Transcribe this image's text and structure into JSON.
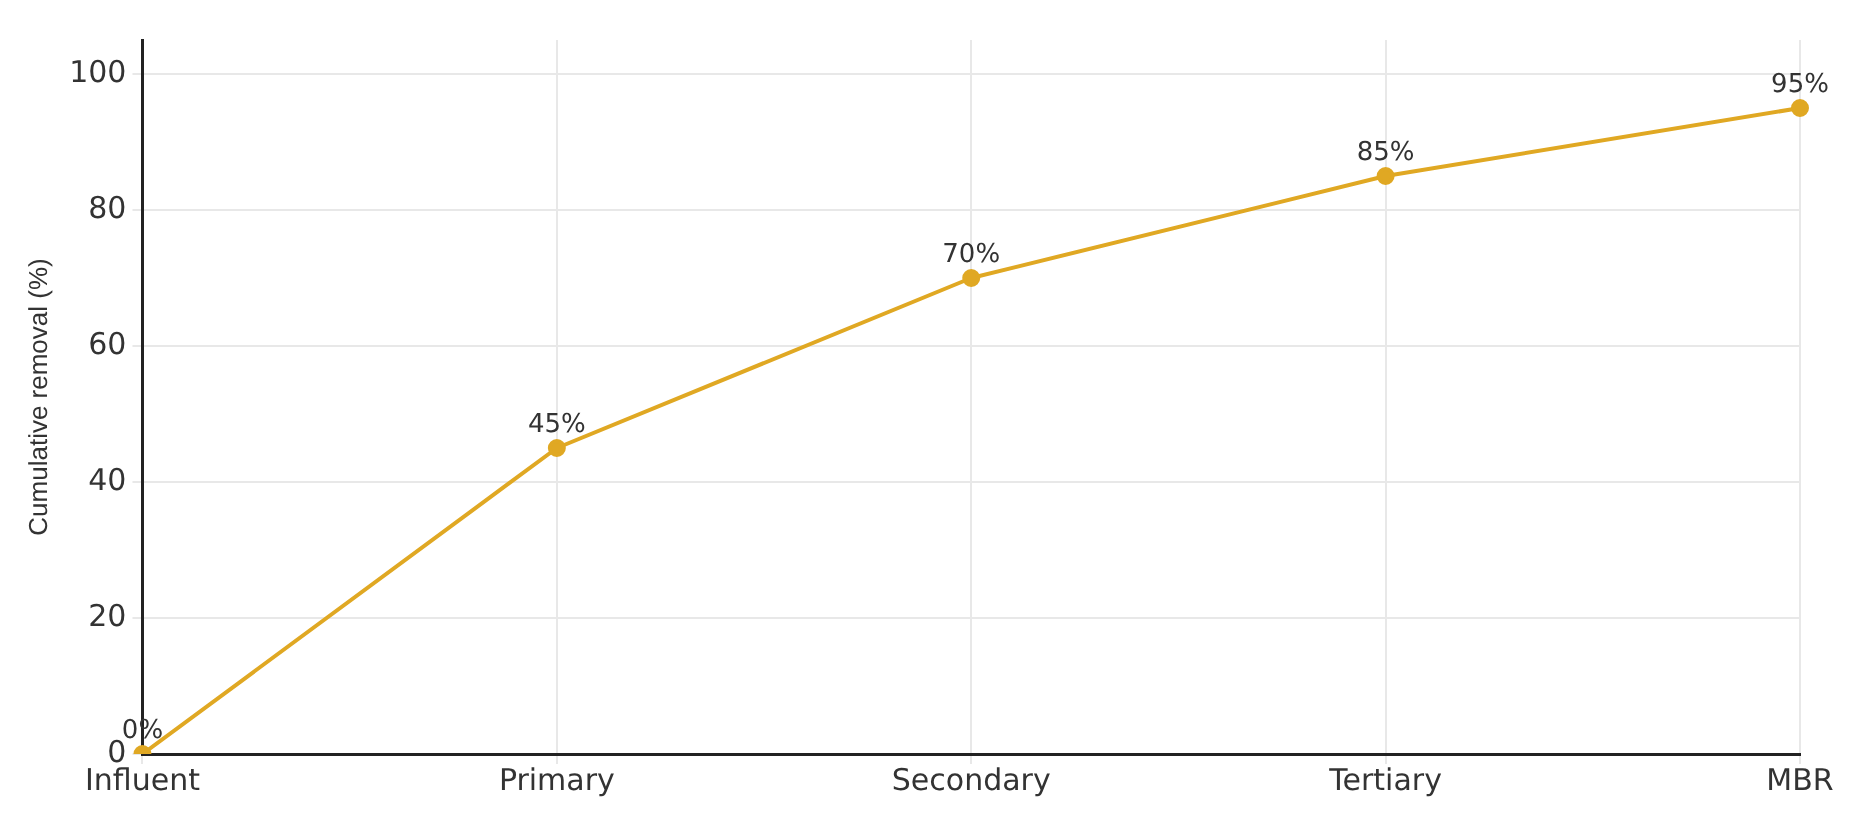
{
  "chart_data": {
    "type": "line",
    "ylabel": "Cumulative removal (%)",
    "categories": [
      "Influent",
      "Primary",
      "Secondary",
      "Tertiary",
      "MBR"
    ],
    "series": [
      {
        "color": "#e0a823",
        "values": [
          0,
          45,
          70,
          85,
          95
        ],
        "value_labels": [
          "0%",
          "45%",
          "70%",
          "85%",
          "95%"
        ]
      }
    ],
    "ylim": [
      0,
      105
    ],
    "yticks": [
      0,
      20,
      40,
      60,
      80,
      100
    ],
    "grid": true,
    "legend": false,
    "marker": "circle",
    "line_style": "solid"
  }
}
